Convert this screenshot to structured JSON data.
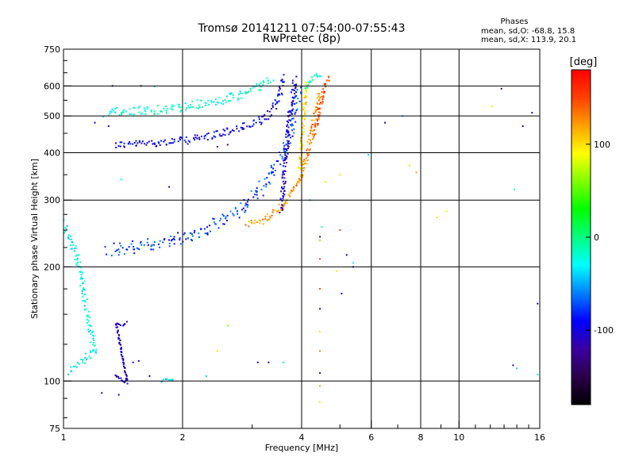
{
  "chart_data": {
    "type": "scatter",
    "title": "Tromsø 20141211 07:54:00-07:55:43",
    "subtitle": "RwPretec (8p)",
    "xlabel": "Frequency [MHz]",
    "ylabel": "Stationary phase Virtual Height [km]",
    "xscale": "log2",
    "yscale": "log",
    "xlim": [
      1,
      16
    ],
    "ylim": [
      75,
      750
    ],
    "x_ticks": [
      {
        "v": 1,
        "label": "1"
      },
      {
        "v": 2,
        "label": "2"
      },
      {
        "v": 4,
        "label": "4"
      },
      {
        "v": 6,
        "label": "6"
      },
      {
        "v": 8,
        "label": "8"
      },
      {
        "v": 10,
        "label": "10"
      },
      {
        "v": 16,
        "label": "16"
      }
    ],
    "y_ticks": [
      {
        "v": 75,
        "label": "75"
      },
      {
        "v": 100,
        "label": "100"
      },
      {
        "v": 200,
        "label": "200"
      },
      {
        "v": 300,
        "label": "300"
      },
      {
        "v": 400,
        "label": "400"
      },
      {
        "v": 500,
        "label": "500"
      },
      {
        "v": 600,
        "label": "600"
      },
      {
        "v": 750,
        "label": "750"
      }
    ],
    "grid": true,
    "stats": {
      "title": "Phases",
      "line1": "mean, sd,O: -68.8, 15.8",
      "line2": "mean, sd,X: 113.9, 20.1"
    },
    "colorbar": {
      "label": "[deg]",
      "range": [
        -180,
        180
      ],
      "ticks": [
        {
          "v": 100,
          "label": "100"
        },
        {
          "v": 0,
          "label": "0"
        },
        {
          "v": -100,
          "label": "-100"
        }
      ],
      "colormap": [
        "#000000",
        "#2a004a",
        "#3a00a0",
        "#0000ff",
        "#0080ff",
        "#00ffff",
        "#00ff80",
        "#00ff00",
        "#80ff00",
        "#ffff00",
        "#ffa000",
        "#ff4000",
        "#ff0000"
      ]
    },
    "series": [
      {
        "values": [
          [
            1.35,
            420
          ],
          [
            1.5,
            421
          ],
          [
            1.7,
            425
          ],
          [
            1.9,
            428
          ],
          [
            2.1,
            432
          ],
          [
            2.4,
            445
          ],
          [
            2.8,
            465
          ],
          [
            3.1,
            480
          ],
          [
            3.3,
            500
          ],
          [
            3.45,
            540
          ],
          [
            3.55,
            590
          ],
          [
            3.6,
            640
          ]
        ],
        "phase": -95,
        "spread": 6
      },
      {
        "values": [
          [
            1.28,
            510
          ],
          [
            1.5,
            515
          ],
          [
            1.8,
            520
          ],
          [
            2.0,
            525
          ],
          [
            2.2,
            535
          ],
          [
            2.5,
            548
          ],
          [
            2.8,
            565
          ],
          [
            3.0,
            585
          ],
          [
            3.2,
            610
          ],
          [
            3.4,
            625
          ]
        ],
        "phase": -20,
        "spread": 7
      },
      {
        "values": [
          [
            1.3,
            222
          ],
          [
            1.5,
            225
          ],
          [
            1.8,
            232
          ],
          [
            2.1,
            243
          ],
          [
            2.5,
            262
          ],
          [
            2.9,
            290
          ],
          [
            3.15,
            320
          ],
          [
            3.4,
            360
          ],
          [
            3.6,
            405
          ],
          [
            3.75,
            455
          ],
          [
            3.85,
            520
          ],
          [
            3.95,
            600
          ]
        ],
        "phase": -75,
        "spread": 10
      },
      {
        "values": [
          [
            3.55,
            280
          ],
          [
            3.62,
            360
          ],
          [
            3.68,
            430
          ],
          [
            3.73,
            500
          ],
          [
            3.8,
            560
          ],
          [
            3.85,
            630
          ]
        ],
        "phase": -105,
        "spread": 5
      },
      {
        "values": [
          [
            2.9,
            258
          ],
          [
            3.2,
            265
          ],
          [
            3.5,
            283
          ],
          [
            3.8,
            315
          ],
          [
            4.0,
            350
          ],
          [
            4.15,
            400
          ],
          [
            4.25,
            460
          ],
          [
            4.35,
            520
          ],
          [
            4.45,
            580
          ]
        ],
        "phase": 125,
        "spread": 5
      },
      {
        "values": [
          [
            3.95,
            350
          ],
          [
            4.0,
            420
          ],
          [
            4.05,
            500
          ],
          [
            4.08,
            560
          ],
          [
            4.1,
            620
          ]
        ],
        "phase": 98,
        "spread": 4
      },
      {
        "values": [
          [
            4.3,
            440
          ],
          [
            4.4,
            500
          ],
          [
            4.5,
            560
          ],
          [
            4.6,
            610
          ],
          [
            4.7,
            640
          ]
        ],
        "phase": 150,
        "spread": 4
      },
      {
        "values": [
          [
            4.1,
            590
          ],
          [
            4.2,
            620
          ],
          [
            4.35,
            640
          ],
          [
            4.5,
            635
          ]
        ],
        "phase": -20,
        "spread": 3
      },
      {
        "values": [
          [
            1.0,
            260
          ],
          [
            1.05,
            230
          ],
          [
            1.1,
            200
          ],
          [
            1.12,
            175
          ],
          [
            1.15,
            150
          ],
          [
            1.18,
            130
          ],
          [
            1.2,
            120
          ],
          [
            1.08,
            110
          ],
          [
            1.03,
            105
          ]
        ],
        "phase": -25,
        "spread": 6
      },
      {
        "values": [
          [
            1.78,
            100
          ],
          [
            1.82,
            101
          ],
          [
            1.86,
            100
          ],
          [
            1.9,
            102
          ]
        ],
        "phase": -40,
        "spread": 2
      },
      {
        "values": [
          [
            1.35,
            103
          ],
          [
            1.4,
            101
          ],
          [
            1.45,
            99
          ],
          [
            1.36,
            142
          ],
          [
            1.41,
            140
          ],
          [
            1.45,
            143
          ]
        ],
        "phase": -110,
        "spread": 2
      }
    ],
    "scatter_points": [
      [
        1.33,
        600,
        -110
      ],
      [
        1.57,
        600,
        -110
      ],
      [
        1.7,
        598,
        -40
      ],
      [
        4.45,
        240,
        -130
      ],
      [
        4.45,
        235,
        60
      ],
      [
        4.45,
        210,
        150
      ],
      [
        4.45,
        175,
        150
      ],
      [
        4.45,
        155,
        -100
      ],
      [
        4.45,
        135,
        100
      ],
      [
        4.45,
        120,
        130
      ],
      [
        4.45,
        105,
        -110
      ],
      [
        4.45,
        97,
        120
      ],
      [
        4.45,
        88,
        100
      ],
      [
        4.5,
        255,
        -20
      ],
      [
        5.0,
        250,
        150
      ],
      [
        4.9,
        195,
        100
      ],
      [
        5.05,
        170,
        -100
      ],
      [
        5.4,
        200,
        -120
      ],
      [
        5.4,
        205,
        -20
      ],
      [
        5.2,
        215,
        -110
      ],
      [
        5.0,
        350,
        100
      ],
      [
        4.6,
        335,
        100
      ],
      [
        3.1,
        112,
        -110
      ],
      [
        3.3,
        112,
        -100
      ],
      [
        3.6,
        112,
        -20
      ],
      [
        2.6,
        140,
        60
      ],
      [
        2.45,
        120,
        100
      ],
      [
        2.3,
        103,
        -40
      ],
      [
        1.65,
        103,
        -110
      ],
      [
        1.55,
        113,
        -110
      ],
      [
        1.5,
        112,
        -120
      ],
      [
        1.45,
        101,
        -110
      ],
      [
        1.38,
        92,
        -110
      ],
      [
        1.25,
        93,
        -130
      ],
      [
        1.4,
        340,
        -20
      ],
      [
        1.3,
        470,
        -110
      ],
      [
        1.2,
        480,
        -130
      ],
      [
        2.15,
        445,
        -120
      ],
      [
        2.45,
        415,
        -100
      ],
      [
        1.85,
        325,
        -110
      ],
      [
        2.6,
        420,
        -120
      ],
      [
        6.5,
        480,
        -140
      ],
      [
        7.2,
        500,
        -40
      ],
      [
        7.5,
        370,
        100
      ],
      [
        7.8,
        355,
        120
      ],
      [
        8.8,
        270,
        100
      ],
      [
        9.3,
        280,
        80
      ],
      [
        5.9,
        395,
        -40
      ],
      [
        4.2,
        300,
        -40
      ],
      [
        12.8,
        590,
        -130
      ],
      [
        12.1,
        530,
        100
      ],
      [
        14.5,
        470,
        -110
      ],
      [
        13.8,
        320,
        -20
      ],
      [
        13.7,
        110,
        -110
      ],
      [
        14.0,
        108,
        -40
      ],
      [
        15.3,
        510,
        -110
      ],
      [
        15.8,
        160,
        -110
      ],
      [
        15.8,
        104,
        -20
      ]
    ]
  }
}
